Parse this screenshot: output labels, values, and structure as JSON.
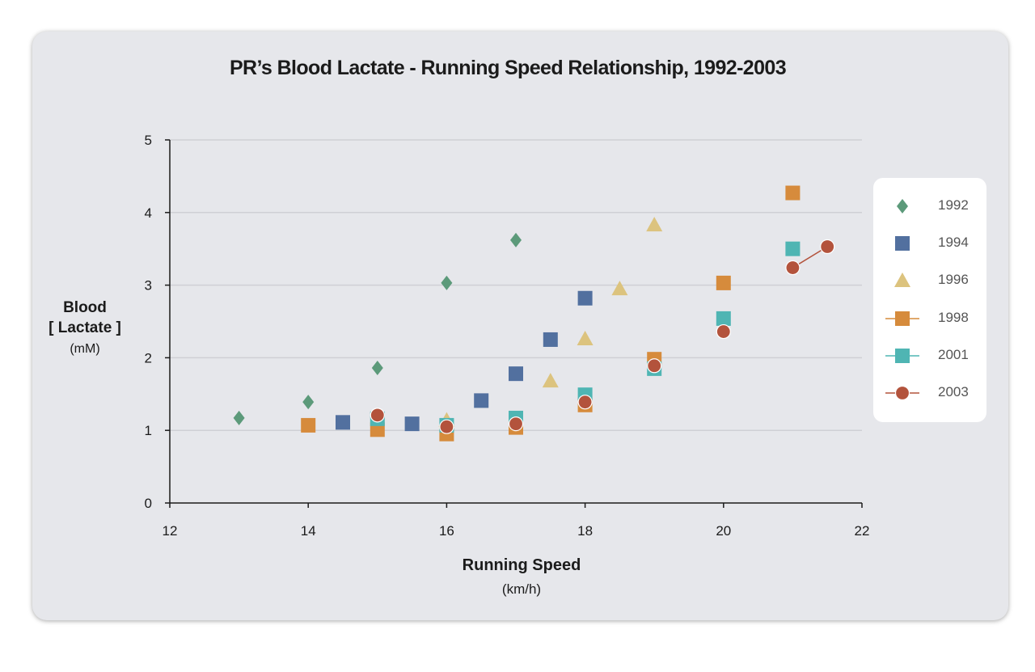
{
  "chart_data": {
    "type": "scatter",
    "title": "PR’s Blood Lactate - Running Speed Relationship, 1992-2003",
    "ylabel": {
      "line1": "Blood",
      "line2": "[ Lactate ]",
      "unit": "(mM)"
    },
    "xlabel": {
      "line1": "Running Speed",
      "unit": "(km/h)"
    },
    "xlim": [
      12,
      22
    ],
    "ylim": [
      0,
      5
    ],
    "xticks": [
      12,
      14,
      16,
      18,
      20,
      22
    ],
    "yticks": [
      0,
      1,
      2,
      3,
      4,
      5
    ],
    "grid": "horizontal",
    "legend_position": "right",
    "series": [
      {
        "name": "1992",
        "marker": "diamond",
        "color": "#5c9a7a",
        "line": false,
        "points": [
          [
            13,
            1.17
          ],
          [
            14,
            1.39
          ],
          [
            15,
            1.86
          ],
          [
            16,
            3.03
          ],
          [
            17,
            3.62
          ]
        ]
      },
      {
        "name": "1994",
        "marker": "square",
        "color": "#52709f",
        "line": false,
        "points": [
          [
            14.5,
            1.11
          ],
          [
            15.5,
            1.09
          ],
          [
            16.5,
            1.41
          ],
          [
            17,
            1.78
          ],
          [
            17.5,
            2.25
          ],
          [
            18,
            2.82
          ]
        ]
      },
      {
        "name": "1996",
        "marker": "triangle",
        "color": "#dcc37e",
        "line": false,
        "points": [
          [
            16,
            1.14
          ],
          [
            17.5,
            1.68
          ],
          [
            18,
            2.26
          ],
          [
            18.5,
            2.95
          ],
          [
            19,
            3.83
          ]
        ]
      },
      {
        "name": "1998",
        "marker": "square",
        "color": "#d68b3c",
        "line": true,
        "points": [
          [
            14,
            1.07
          ],
          [
            15,
            1.01
          ],
          [
            16,
            0.95
          ],
          [
            17,
            1.04
          ],
          [
            18,
            1.35
          ],
          [
            19,
            1.98
          ],
          [
            20,
            3.03
          ],
          [
            21,
            4.27
          ]
        ]
      },
      {
        "name": "2001",
        "marker": "square",
        "color": "#4fb5b3",
        "line": true,
        "points": [
          [
            15,
            1.16
          ],
          [
            16,
            1.07
          ],
          [
            17,
            1.17
          ],
          [
            18,
            1.49
          ],
          [
            19,
            1.85
          ],
          [
            20,
            2.54
          ],
          [
            21,
            3.5
          ]
        ]
      },
      {
        "name": "2003",
        "marker": "circle",
        "color": "#b3533c",
        "line": true,
        "points": [
          [
            15,
            1.21
          ],
          [
            16,
            1.05
          ],
          [
            17,
            1.09
          ],
          [
            18,
            1.39
          ],
          [
            19,
            1.89
          ],
          [
            20,
            2.36
          ],
          [
            21,
            3.24
          ],
          [
            21.5,
            3.53
          ]
        ]
      }
    ]
  }
}
